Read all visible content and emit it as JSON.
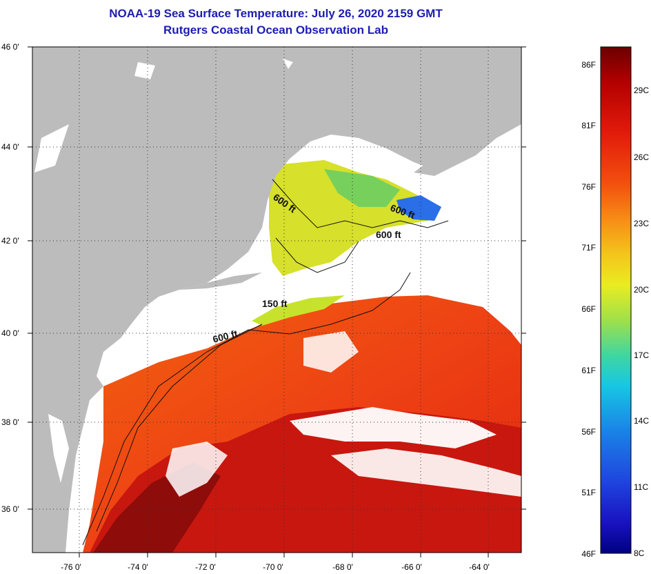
{
  "header": {
    "title": "NOAA-19 Sea Surface Temperature:  July 26, 2020 2159 GMT",
    "subtitle": "Rutgers Coastal Ocean Observation Lab"
  },
  "map": {
    "lat_labels": [
      "46 0'",
      "44 0'",
      "42 0'",
      "40 0'",
      "38 0'",
      "36 0'"
    ],
    "lon_labels": [
      "-76 0'",
      "-74 0'",
      "-72 0'",
      "-70 0'",
      "-68 0'",
      "-66 0'",
      "-64 0'"
    ],
    "contour_labels": [
      "600 ft",
      "600 ft",
      "600 ft",
      "150 ft",
      "600 ft"
    ],
    "colors": {
      "land": "#bcbcbc",
      "cloud": "#ffffff",
      "warm_sst": "#ee3c16",
      "hot_sst": "#b81410",
      "cool_sst": "#d4e22a",
      "cold_sst": "#2a6ee8"
    }
  },
  "colorbar": {
    "fahrenheit_labels": [
      "86F",
      "81F",
      "76F",
      "71F",
      "66F",
      "61F",
      "56F",
      "51F",
      "46F"
    ],
    "celsius_labels": [
      "29C",
      "26C",
      "23C",
      "20C",
      "17C",
      "14C",
      "11C",
      "8C"
    ],
    "colors": [
      "#6b0000",
      "#b30000",
      "#e21b0b",
      "#f2500e",
      "#f78c16",
      "#f4c51c",
      "#e9ec21",
      "#9fe04a",
      "#3fd6a2",
      "#17c6e4",
      "#1a82e6",
      "#1f44de",
      "#1912c0",
      "#000080"
    ]
  }
}
